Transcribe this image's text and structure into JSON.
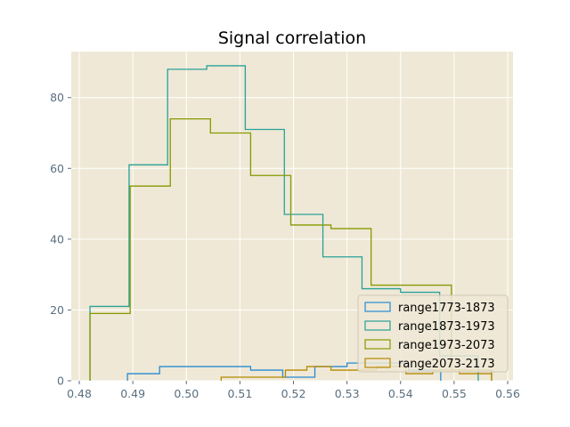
{
  "chart_data": {
    "type": "histogram",
    "title": "Signal correlation",
    "xlabel": "",
    "ylabel": "",
    "xlim": [
      0.4785,
      0.561
    ],
    "ylim": [
      0,
      93
    ],
    "xticks": [
      0.48,
      0.49,
      0.5,
      0.51,
      0.52,
      0.53,
      0.54,
      0.55,
      0.56
    ],
    "yticks": [
      0,
      20,
      40,
      60,
      80
    ],
    "grid": true,
    "legend_position": "lower-right",
    "background": "#efe8d6",
    "series": [
      {
        "name": "range1773-1873",
        "color": "#268bd2",
        "edges": [
          0.489,
          0.495,
          0.5005,
          0.512,
          0.518,
          0.524,
          0.53,
          0.5355,
          0.5415,
          0.5475
        ],
        "counts": [
          2,
          4,
          4,
          3,
          1,
          4,
          5,
          5,
          3
        ]
      },
      {
        "name": "range1873-1973",
        "color": "#2aa198",
        "edges": [
          0.482,
          0.4893,
          0.4965,
          0.5038,
          0.511,
          0.5183,
          0.5255,
          0.5328,
          0.54,
          0.5473,
          0.5545
        ],
        "counts": [
          21,
          61,
          88,
          89,
          71,
          47,
          35,
          26,
          25,
          7
        ]
      },
      {
        "name": "range1973-2073",
        "color": "#859900",
        "edges": [
          0.482,
          0.4895,
          0.497,
          0.5045,
          0.512,
          0.5195,
          0.527,
          0.5345,
          0.542,
          0.5495,
          0.557
        ],
        "counts": [
          19,
          55,
          74,
          70,
          58,
          44,
          43,
          27,
          27,
          3
        ]
      },
      {
        "name": "range2073-2173",
        "color": "#b58900",
        "edges": [
          0.5065,
          0.5125,
          0.5185,
          0.5225,
          0.527,
          0.531,
          0.5355,
          0.541,
          0.546,
          0.551,
          0.557
        ],
        "counts": [
          1,
          1,
          3,
          4,
          3,
          3,
          4,
          2,
          3,
          2
        ]
      }
    ]
  }
}
